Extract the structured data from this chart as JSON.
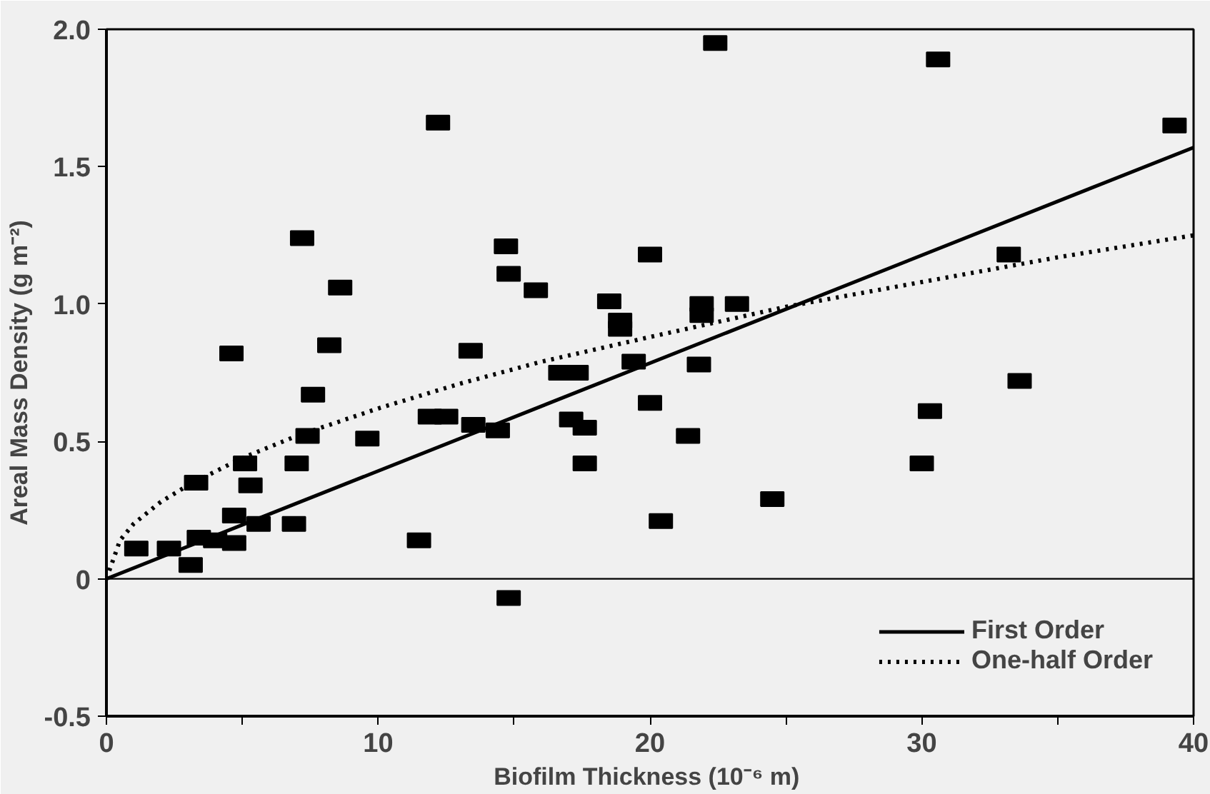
{
  "chart_data": {
    "type": "scatter",
    "xlabel": "Biofilm Thickness  (10⁻⁶ m)",
    "ylabel": "Areal Mass Density (g m⁻²)",
    "xlim": [
      0,
      40
    ],
    "ylim": [
      -0.5,
      2.0
    ],
    "xticks": [
      0,
      {
        "value": 5,
        "label": null
      },
      10,
      {
        "value": 15,
        "label": null
      },
      20,
      {
        "value": 25,
        "label": null
      },
      30,
      {
        "value": 35,
        "label": null
      },
      40
    ],
    "yticks": [
      {
        "value": -0.5,
        "label": "-0.5"
      },
      0,
      {
        "value": 0.5,
        "label": "0.5"
      },
      {
        "value": 1.0,
        "label": "1.0"
      },
      {
        "value": 1.5,
        "label": "1.5"
      },
      {
        "value": 2.0,
        "label": "2.0"
      }
    ],
    "grid": false,
    "legend": "bottom right",
    "ref_lines": [
      {
        "axis": "y",
        "value": 0,
        "label": null,
        "color": "#000000"
      }
    ],
    "series": [
      {
        "color": "#000000",
        "marker": "square",
        "x": [
          1.1,
          2.3,
          3.1,
          3.3,
          3.4,
          4.0,
          4.7,
          4.7,
          4.6,
          5.1,
          5.3,
          5.6,
          6.9,
          7.0,
          7.6,
          7.4,
          7.2,
          8.2,
          8.6,
          9.6,
          12.2,
          11.9,
          12.5,
          11.5,
          13.5,
          13.4,
          14.4,
          14.7,
          14.8,
          14.8,
          15.8,
          16.7,
          17.3,
          17.1,
          17.6,
          17.6,
          18.5,
          18.9,
          18.9,
          19.4,
          20.0,
          20.0,
          20.4,
          21.4,
          21.8,
          21.9,
          21.9,
          23.2,
          22.4,
          24.5,
          30.0,
          30.3,
          30.6,
          33.2,
          33.6,
          39.3
        ],
        "values": [
          0.11,
          0.11,
          0.05,
          0.35,
          0.15,
          0.14,
          0.13,
          0.23,
          0.82,
          0.42,
          0.34,
          0.2,
          0.2,
          0.42,
          0.67,
          0.52,
          1.24,
          0.85,
          1.06,
          0.51,
          1.66,
          0.59,
          0.59,
          0.14,
          0.56,
          0.83,
          0.54,
          1.21,
          -0.07,
          1.11,
          1.05,
          0.75,
          0.75,
          0.58,
          0.55,
          0.42,
          1.01,
          0.94,
          0.91,
          0.79,
          1.18,
          0.64,
          0.21,
          0.52,
          0.78,
          0.96,
          1.0,
          1.0,
          1.95,
          0.29,
          0.42,
          0.61,
          1.89,
          1.18,
          0.72,
          1.65
        ]
      },
      {
        "type": "line",
        "name": "First Order",
        "color": "#000000",
        "line_style": "solid",
        "x": [
          0,
          40
        ],
        "values": [
          0,
          1.57
        ]
      },
      {
        "type": "line",
        "name": "One-half Order",
        "color": "#000000",
        "line_style": "dotted",
        "x": [
          0,
          0.5,
          1,
          2,
          3,
          5,
          7,
          10,
          13,
          16,
          20,
          25,
          30,
          35,
          40
        ],
        "values": [
          0,
          0.14,
          0.2,
          0.28,
          0.34,
          0.44,
          0.52,
          0.62,
          0.71,
          0.79,
          0.88,
          0.99,
          1.08,
          1.17,
          1.25
        ]
      }
    ]
  }
}
